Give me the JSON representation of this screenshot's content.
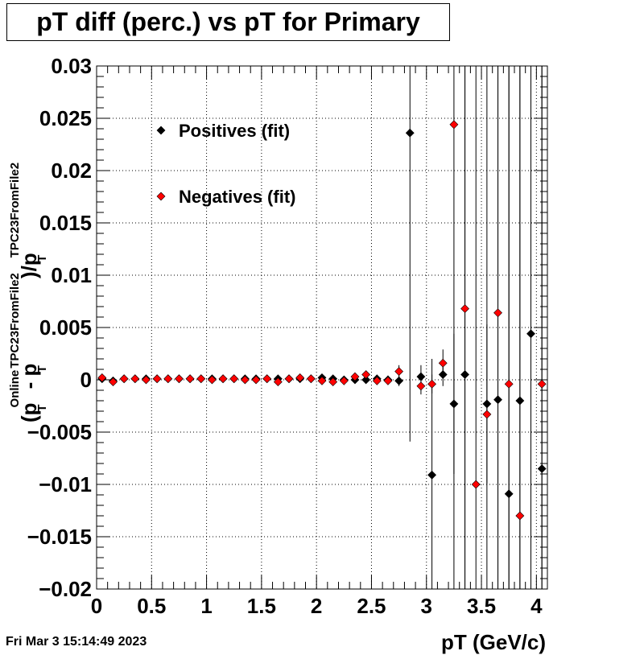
{
  "title": "pT diff (perc.) vs pT for Primary",
  "timestamp": "Fri Mar  3 15:14:49 2023",
  "chart_data": {
    "type": "scatter",
    "title": "pT diff (perc.) vs pT for Primary",
    "xlabel": "pT (GeV/c)",
    "ylabel": {
      "open": "(p",
      "sub1": "T",
      "sup1": "Online",
      "minus": " - p",
      "sub2": "T",
      "sup2": "TPC23FromFile2",
      "close": ")/p",
      "sub3": "T",
      "sup3": "TPC23FromFile2"
    },
    "xlim": [
      0,
      4.1
    ],
    "ylim": [
      -0.02,
      0.03
    ],
    "xticks": [
      0,
      0.5,
      1,
      1.5,
      2,
      2.5,
      3,
      3.5,
      4
    ],
    "xtick_labels": [
      "0",
      "0.5",
      "1",
      "1.5",
      "2",
      "2.5",
      "3",
      "3.5",
      "4"
    ],
    "yticks": [
      -0.02,
      -0.015,
      -0.01,
      -0.005,
      0,
      0.005,
      0.01,
      0.015,
      0.02,
      0.025,
      0.03
    ],
    "ytick_labels": [
      "−0.02",
      "−0.015",
      "−0.01",
      "−0.005",
      "0",
      "0.005",
      "0.01",
      "0.015",
      "0.02",
      "0.025",
      "0.03"
    ],
    "grid": true,
    "legend_position": "top-left",
    "series": [
      {
        "name": "Positives (fit)",
        "color": "#000000",
        "points": [
          [
            0.05,
            0.0001,
            0.0001
          ],
          [
            0.15,
            -0.0001,
            0.0001
          ],
          [
            0.25,
            0.0001,
            0.0001
          ],
          [
            0.35,
            0.0001,
            0.0001
          ],
          [
            0.45,
            0.0001,
            0.0001
          ],
          [
            0.55,
            0.0001,
            0.0001
          ],
          [
            0.65,
            0.0001,
            0.0001
          ],
          [
            0.75,
            0.0001,
            0.0001
          ],
          [
            0.85,
            0.0001,
            0.0001
          ],
          [
            0.95,
            0.0001,
            0.0001
          ],
          [
            1.05,
            0.0001,
            0.0001
          ],
          [
            1.15,
            0.0001,
            0.0001
          ],
          [
            1.25,
            0.0001,
            0.0001
          ],
          [
            1.35,
            0.0001,
            0.0001
          ],
          [
            1.45,
            0.0001,
            0.0001
          ],
          [
            1.55,
            0.0001,
            0.0001
          ],
          [
            1.65,
            0.0001,
            0.0002
          ],
          [
            1.75,
            0.0001,
            0.0002
          ],
          [
            1.85,
            0.0001,
            0.0002
          ],
          [
            1.95,
            0.0001,
            0.0002
          ],
          [
            2.05,
            0.0002,
            0.0002
          ],
          [
            2.15,
            0.0001,
            0.0002
          ],
          [
            2.25,
            0.0,
            0.0002
          ],
          [
            2.35,
            0.0,
            0.0002
          ],
          [
            2.45,
            0.0,
            0.0003
          ],
          [
            2.55,
            0.0001,
            0.0003
          ],
          [
            2.65,
            0.0,
            0.0004
          ],
          [
            2.75,
            -0.0001,
            0.0005
          ],
          [
            2.85,
            0.0236,
            0.0295
          ],
          [
            2.95,
            0.0003,
            0.0011
          ],
          [
            3.05,
            -0.0091,
            0.0111
          ],
          [
            3.15,
            0.0005,
            0.0011
          ],
          [
            3.25,
            -0.0023,
            0.0067
          ],
          [
            3.35,
            0.0005,
            0.05
          ],
          [
            3.55,
            -0.0023,
            0.0076
          ],
          [
            3.65,
            -0.0019,
            0.05
          ],
          [
            3.75,
            -0.0109,
            0.05
          ],
          [
            3.85,
            -0.002,
            0.05
          ],
          [
            3.95,
            0.0044,
            0.05
          ],
          [
            4.05,
            -0.0085,
            0.05
          ]
        ]
      },
      {
        "name": "Negatives (fit)",
        "color": "#ff0000",
        "points": [
          [
            0.05,
            0.0002,
            0.0001
          ],
          [
            0.15,
            -0.0002,
            0.0001
          ],
          [
            0.25,
            0.0001,
            0.0001
          ],
          [
            0.35,
            0.0001,
            0.0001
          ],
          [
            0.45,
            0.0,
            0.0001
          ],
          [
            0.55,
            0.0001,
            0.0001
          ],
          [
            0.65,
            0.0001,
            0.0001
          ],
          [
            0.75,
            0.0001,
            0.0001
          ],
          [
            0.85,
            0.0001,
            0.0001
          ],
          [
            0.95,
            0.0001,
            0.0001
          ],
          [
            1.05,
            0.0,
            0.0001
          ],
          [
            1.15,
            0.0001,
            0.0001
          ],
          [
            1.25,
            0.0001,
            0.0001
          ],
          [
            1.35,
            0.0,
            0.0001
          ],
          [
            1.45,
            0.0,
            0.0001
          ],
          [
            1.55,
            0.0001,
            0.0001
          ],
          [
            1.65,
            -0.0002,
            0.0002
          ],
          [
            1.75,
            0.0001,
            0.0002
          ],
          [
            1.85,
            0.0002,
            0.0002
          ],
          [
            1.95,
            0.0001,
            0.0002
          ],
          [
            2.05,
            -0.0001,
            0.0002
          ],
          [
            2.15,
            -0.0002,
            0.0002
          ],
          [
            2.25,
            -0.0001,
            0.0002
          ],
          [
            2.35,
            0.0003,
            0.0003
          ],
          [
            2.45,
            0.0005,
            0.0003
          ],
          [
            2.55,
            -0.0001,
            0.0003
          ],
          [
            2.65,
            -0.0001,
            0.0003
          ],
          [
            2.75,
            0.0008,
            0.0006
          ],
          [
            2.95,
            -0.0006,
            0.0008
          ],
          [
            3.05,
            -0.0004,
            0.0009
          ],
          [
            3.15,
            0.0016,
            0.0013
          ],
          [
            3.25,
            0.0244,
            0.05
          ],
          [
            3.35,
            0.0068,
            0.05
          ],
          [
            3.45,
            -0.01,
            0.05
          ],
          [
            3.55,
            -0.0033,
            0.05
          ],
          [
            3.65,
            0.0064,
            0.05
          ],
          [
            3.75,
            -0.0004,
            0.05
          ],
          [
            3.85,
            -0.013,
            0.05
          ],
          [
            4.05,
            -0.0004,
            0.05
          ]
        ]
      }
    ]
  }
}
